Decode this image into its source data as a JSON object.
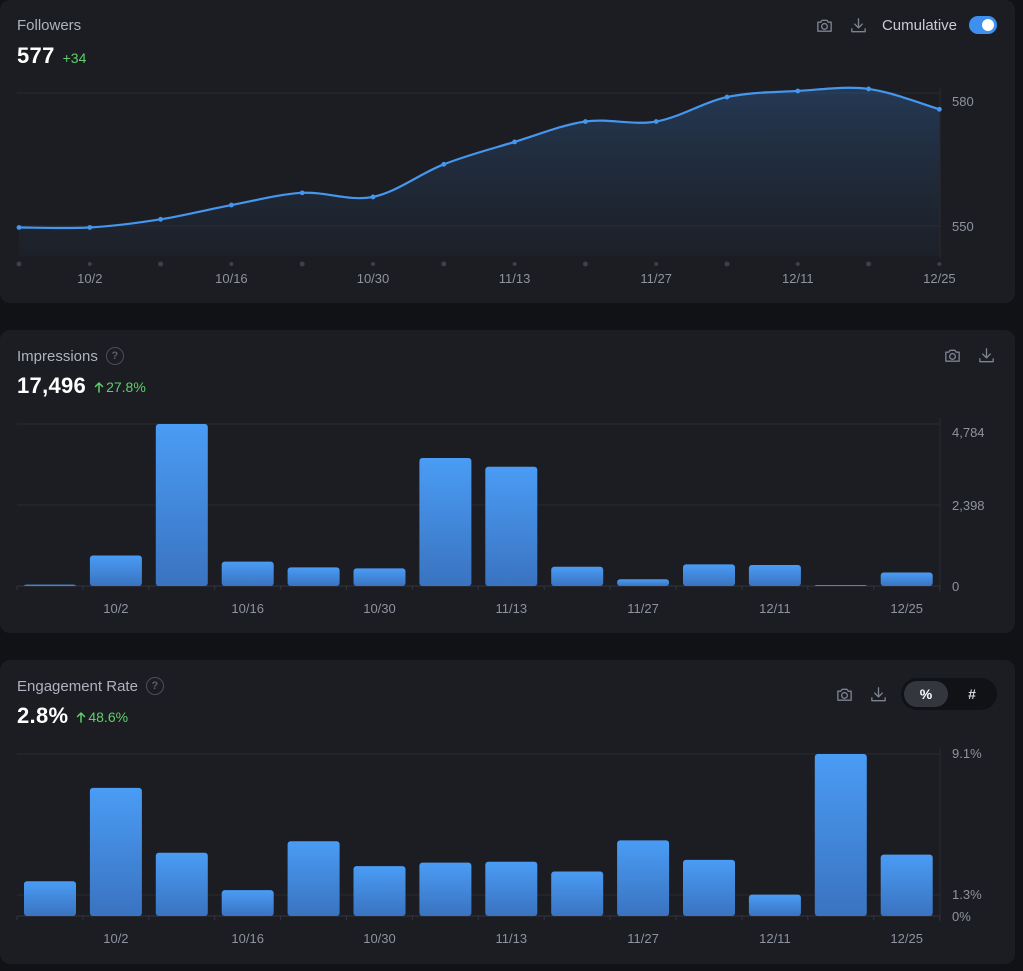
{
  "colors": {
    "accent": "#4596ee",
    "positive": "#5fcf6b",
    "card_bg": "#1c1d22",
    "page_bg": "#111216"
  },
  "icons": {
    "camera": "camera-icon",
    "download": "download-icon",
    "help": "help-icon",
    "arrow_up": "arrow-up-icon"
  },
  "followers": {
    "title": "Followers",
    "value": "577",
    "delta": "+34",
    "toggle_label": "Cumulative",
    "toggle_on": true
  },
  "impressions": {
    "title": "Impressions",
    "help": "?",
    "value": "17,496",
    "delta": "27.8%"
  },
  "engagement": {
    "title": "Engagement Rate",
    "help": "?",
    "value": "2.8%",
    "delta": "48.6%",
    "seg_options": [
      "%",
      "#"
    ],
    "seg_selected": "%"
  },
  "chart_data": [
    {
      "type": "area",
      "x_ticks": [
        "10/2",
        "10/16",
        "10/30",
        "11/13",
        "11/27",
        "12/11",
        "12/25"
      ],
      "y_ticks": [
        "580",
        "550"
      ],
      "ylim": [
        544,
        584
      ],
      "values": [
        551,
        551,
        553,
        556.5,
        559.5,
        558.5,
        566.5,
        572,
        577,
        577,
        583,
        584.5,
        585,
        580
      ],
      "grid": true,
      "legend": "none"
    },
    {
      "type": "bar",
      "x_ticks": [
        "10/2",
        "10/16",
        "10/30",
        "11/13",
        "11/27",
        "12/11",
        "12/25"
      ],
      "y_ticks": [
        "4,784",
        "2,398",
        "0"
      ],
      "ylim": [
        0,
        4784
      ],
      "values": [
        40,
        900,
        4784,
        720,
        550,
        520,
        3780,
        3520,
        570,
        200,
        640,
        620,
        10,
        400
      ],
      "grid": true,
      "legend": "none"
    },
    {
      "type": "bar",
      "x_ticks": [
        "10/2",
        "10/16",
        "10/30",
        "11/13",
        "11/27",
        "12/11",
        "12/25"
      ],
      "y_ticks": [
        "9.1%",
        "1.3%",
        "0%"
      ],
      "ylim": [
        0,
        9.1
      ],
      "values": [
        1.95,
        7.2,
        3.55,
        1.45,
        4.2,
        2.8,
        3.0,
        3.05,
        2.5,
        4.25,
        3.15,
        1.2,
        9.1,
        3.45
      ],
      "grid": true,
      "legend": "none"
    }
  ]
}
